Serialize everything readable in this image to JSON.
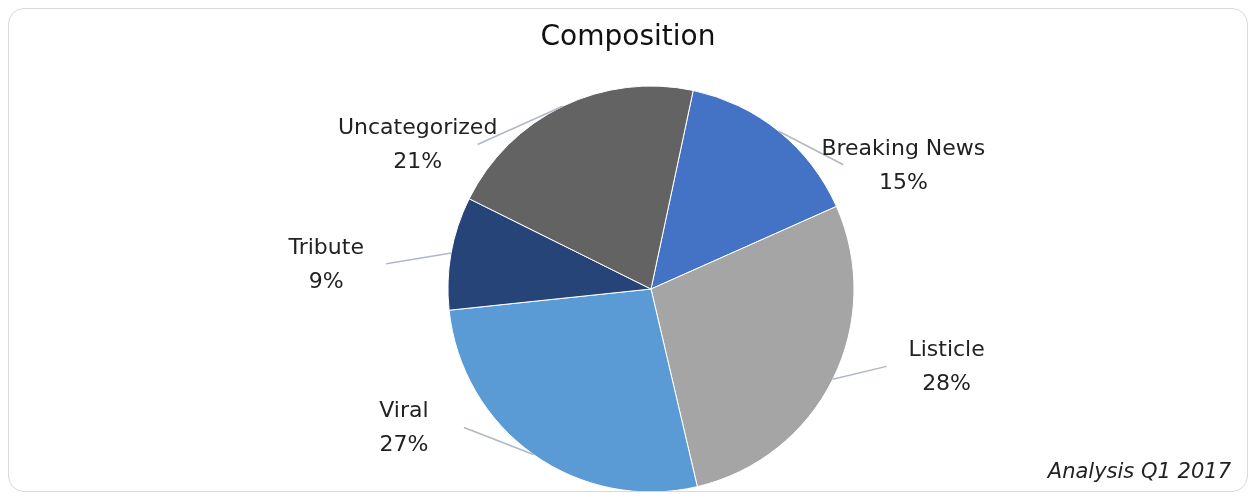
{
  "chart_data": {
    "type": "pie",
    "title": "Composition",
    "categories": [
      "Breaking News",
      "Listicle",
      "Viral",
      "Tribute",
      "Uncategorized"
    ],
    "values": [
      15,
      28,
      27,
      9,
      21
    ],
    "value_labels": [
      "15%",
      "28%",
      "27%",
      "9%",
      "21%"
    ],
    "colors": [
      "#4472c4",
      "#a5a5a5",
      "#5b9bd5",
      "#264478",
      "#636363"
    ],
    "annotations": [
      "Analysis Q1 2017"
    ]
  }
}
